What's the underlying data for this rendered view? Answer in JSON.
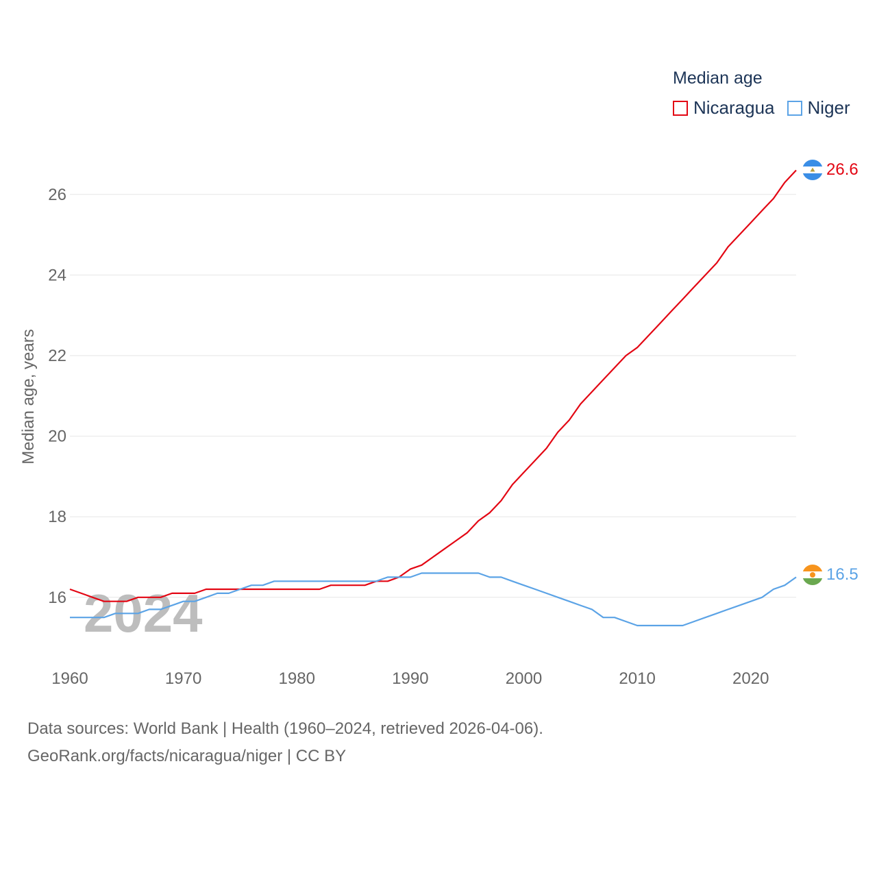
{
  "legend": {
    "title": "Median age",
    "items": [
      {
        "label": "Nicaragua",
        "color": "#e30613"
      },
      {
        "label": "Niger",
        "color": "#5ba3e6"
      }
    ]
  },
  "sources": {
    "line1": "Data sources: World Bank | Health (1960–2024, retrieved 2026-04-06).",
    "line2": "GeoRank.org/facts/nicaragua/niger | CC BY"
  },
  "chart_data": {
    "type": "line",
    "title": "Median age",
    "xlabel": "",
    "ylabel": "Median age, years",
    "xlim": [
      1960,
      2024
    ],
    "ylim": [
      14.5,
      27
    ],
    "xticks": [
      1960,
      1970,
      1980,
      1990,
      2000,
      2010,
      2020
    ],
    "yticks": [
      16,
      18,
      20,
      22,
      24,
      26
    ],
    "grid": true,
    "legend_position": "top-right",
    "year_watermark": "2024",
    "x": [
      1960,
      1961,
      1962,
      1963,
      1964,
      1965,
      1966,
      1967,
      1968,
      1969,
      1970,
      1971,
      1972,
      1973,
      1974,
      1975,
      1976,
      1977,
      1978,
      1979,
      1980,
      1981,
      1982,
      1983,
      1984,
      1985,
      1986,
      1987,
      1988,
      1989,
      1990,
      1991,
      1992,
      1993,
      1994,
      1995,
      1996,
      1997,
      1998,
      1999,
      2000,
      2001,
      2002,
      2003,
      2004,
      2005,
      2006,
      2007,
      2008,
      2009,
      2010,
      2011,
      2012,
      2013,
      2014,
      2015,
      2016,
      2017,
      2018,
      2019,
      2020,
      2021,
      2022,
      2023,
      2024
    ],
    "series": [
      {
        "name": "Nicaragua",
        "color": "#e30613",
        "end_label": "26.6",
        "values": [
          16.2,
          16.1,
          16.0,
          15.9,
          15.9,
          15.9,
          16.0,
          16.0,
          16.0,
          16.1,
          16.1,
          16.1,
          16.2,
          16.2,
          16.2,
          16.2,
          16.2,
          16.2,
          16.2,
          16.2,
          16.2,
          16.2,
          16.2,
          16.3,
          16.3,
          16.3,
          16.3,
          16.4,
          16.4,
          16.5,
          16.7,
          16.8,
          17.0,
          17.2,
          17.4,
          17.6,
          17.9,
          18.1,
          18.4,
          18.8,
          19.1,
          19.4,
          19.7,
          20.1,
          20.4,
          20.8,
          21.1,
          21.4,
          21.7,
          22.0,
          22.2,
          22.5,
          22.8,
          23.1,
          23.4,
          23.7,
          24.0,
          24.3,
          24.7,
          25.0,
          25.3,
          25.6,
          25.9,
          26.3,
          26.6
        ]
      },
      {
        "name": "Niger",
        "color": "#5ba3e6",
        "end_label": "16.5",
        "values": [
          15.5,
          15.5,
          15.5,
          15.5,
          15.6,
          15.6,
          15.6,
          15.7,
          15.7,
          15.8,
          15.9,
          15.9,
          16.0,
          16.1,
          16.1,
          16.2,
          16.3,
          16.3,
          16.4,
          16.4,
          16.4,
          16.4,
          16.4,
          16.4,
          16.4,
          16.4,
          16.4,
          16.4,
          16.5,
          16.5,
          16.5,
          16.6,
          16.6,
          16.6,
          16.6,
          16.6,
          16.6,
          16.5,
          16.5,
          16.4,
          16.3,
          16.2,
          16.1,
          16.0,
          15.9,
          15.8,
          15.7,
          15.5,
          15.5,
          15.4,
          15.3,
          15.3,
          15.3,
          15.3,
          15.3,
          15.4,
          15.5,
          15.6,
          15.7,
          15.8,
          15.9,
          16.0,
          16.2,
          16.3,
          16.5
        ]
      }
    ]
  }
}
